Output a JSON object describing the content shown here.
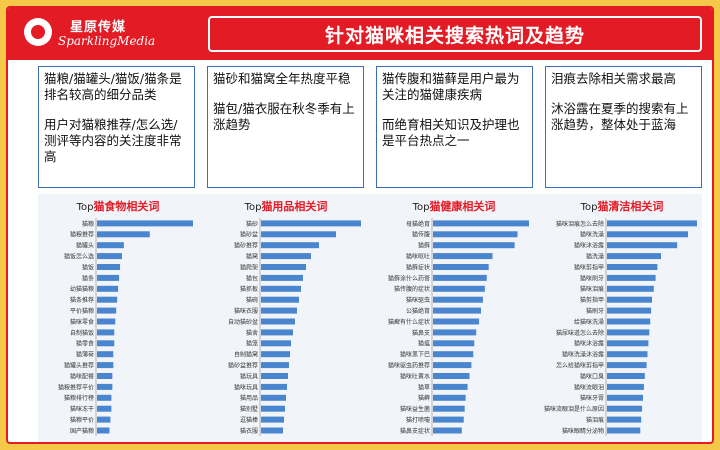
{
  "brand": {
    "name_cn": "星原传媒",
    "name_en": "SparklingMedia"
  },
  "title": "针对猫咪相关搜索热词及趋势",
  "cards": [
    {
      "paragraphs": [
        "猫粮/猫罐头/猫饭/猫条是排名较高的细分品类",
        "用户对猫粮推荐/怎么选/测评等内容的关注度非常高"
      ]
    },
    {
      "paragraphs": [
        "猫砂和猫窝全年热度平稳",
        "猫包/猫衣服在秋冬季有上涨趋势"
      ]
    },
    {
      "paragraphs": [
        "猫传腹和猫藓是用户最为关注的猫健康疾病",
        "而绝育相关知识及护理也是平台热点之一"
      ]
    },
    {
      "paragraphs": [
        "泪痕去除相关需求最高",
        "沐浴露在夏季的搜索有上涨趋势，整体处于蓝海"
      ]
    }
  ],
  "colors": {
    "bar": "#4A86CF",
    "accent": "#E21B25",
    "frame": "#F6C84A"
  },
  "chart_data": [
    {
      "type": "bar",
      "orientation": "horizontal",
      "title_prefix": "Top",
      "title_main": "猫食物相关词",
      "categories": [
        "猫粮",
        "猫粮推荐",
        "猫罐头",
        "猫饭怎么选",
        "猫饭",
        "猫条",
        "幼猫猫粮",
        "猫条推荐",
        "平价猫粮",
        "猫咪零食",
        "自制猫饭",
        "猫零食",
        "猫薄荷",
        "猫罐头推荐",
        "猫咪配餐",
        "猫粮推荐平价",
        "猫粮排行榜",
        "猫咪冻干",
        "猫粮平价",
        "国产猫粮"
      ],
      "values": [
        100,
        55,
        28,
        26,
        24,
        23,
        22,
        21,
        20,
        19,
        18,
        18,
        17,
        17,
        16,
        16,
        15,
        15,
        14,
        13
      ]
    },
    {
      "type": "bar",
      "orientation": "horizontal",
      "title_prefix": "Top",
      "title_main": "猫用品相关词",
      "categories": [
        "猫砂",
        "猫砂盆",
        "猫砂推荐",
        "猫窝",
        "猫爬架",
        "猫包",
        "猫抓板",
        "猫碗",
        "猫咪衣服",
        "自动猫砂盆",
        "猫舍",
        "猫笼",
        "自制猫窝",
        "猫砂盆推荐",
        "猫玩具",
        "猫咪玩具",
        "猫用品",
        "猫别墅",
        "逗猫棒",
        "猫衣服"
      ],
      "values": [
        100,
        75,
        58,
        50,
        45,
        42,
        40,
        38,
        36,
        34,
        32,
        30,
        29,
        28,
        27,
        26,
        25,
        24,
        23,
        22
      ]
    },
    {
      "type": "bar",
      "orientation": "horizontal",
      "title_prefix": "Top",
      "title_main": "猫健康相关词",
      "categories": [
        "母猫绝育",
        "猫传腹",
        "猫藓",
        "猫咪呕吐",
        "猫藓症状",
        "猫藓涂什么药膏",
        "猫传腹的症状",
        "猫咪驱虫",
        "公猫绝育",
        "猫癣有什么症状",
        "猫鼻支",
        "猫瘟",
        "猫咪黑下巴",
        "猫咪驱虫药推荐",
        "猫咪吐黄水",
        "猫草",
        "猫藓",
        "猫咪益生菌",
        "猫打喷嚏",
        "猫鼻支症状"
      ],
      "values": [
        100,
        88,
        85,
        62,
        58,
        56,
        54,
        52,
        50,
        48,
        45,
        43,
        42,
        40,
        38,
        36,
        34,
        33,
        32,
        30
      ]
    },
    {
      "type": "bar",
      "orientation": "horizontal",
      "title_prefix": "Top",
      "title_main": "猫清洁相关词",
      "categories": [
        "猫咪泪痕怎么去除",
        "猫咪洗澡",
        "猫咪沐浴露",
        "猫洗澡",
        "猫咪剪指甲",
        "猫咪刷牙",
        "猫咪泪痕",
        "猫剪指甲",
        "猫刷牙",
        "给猫咪洗澡",
        "猫尿味道怎么去除",
        "猫咪沐浴露",
        "猫咪洗澡沐浴露",
        "怎么给猫咪剪指甲",
        "猫咪口臭",
        "猫咪流眼泪",
        "猫咪牙膏",
        "猫咪流眼泪是什么原因",
        "猫泪痕",
        "猫咪眼睛分泌物"
      ],
      "values": [
        100,
        90,
        78,
        60,
        56,
        54,
        52,
        50,
        49,
        48,
        47,
        46,
        45,
        44,
        42,
        41,
        40,
        39,
        38,
        37
      ]
    }
  ]
}
